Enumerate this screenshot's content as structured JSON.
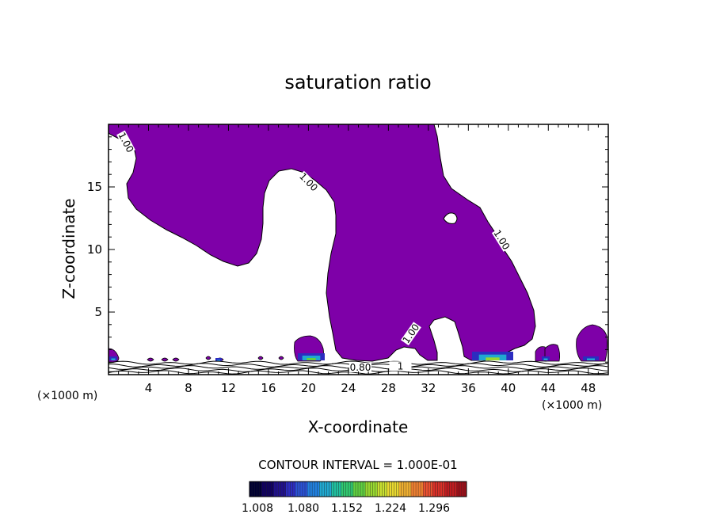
{
  "chart_data": {
    "type": "contour",
    "title": "saturation ratio",
    "xlabel": "X-coordinate",
    "ylabel": "Z-coordinate",
    "x_unit": "(×1000 m)",
    "z_unit": "(×1000 m)",
    "xlim": [
      0,
      50
    ],
    "ylim": [
      0,
      20
    ],
    "x_ticks": [
      4,
      8,
      12,
      16,
      20,
      24,
      28,
      32,
      36,
      40,
      44,
      48
    ],
    "y_ticks": [
      5,
      10,
      15
    ],
    "grid": false,
    "fill_color": "#7e00a8",
    "contour_line_color": "#000000",
    "contour_labels": [
      {
        "text": "1.00",
        "x": 1.6,
        "z": 18.5
      },
      {
        "text": "1.00",
        "x": 19.9,
        "z": 15.3
      },
      {
        "text": "1.00",
        "x": 39.2,
        "z": 10.7
      },
      {
        "text": "1.00",
        "x": 30.4,
        "z": 3.2
      },
      {
        "text": "0.80",
        "x": 25.2,
        "z": 0.45
      },
      {
        "text": "1",
        "x": 29.2,
        "z": 0.55
      }
    ],
    "contour_interval": "CONTOUR INTERVAL = 1.000E-01",
    "colorbar": {
      "ticks": [
        "1.008",
        "1.080",
        "1.152",
        "1.224",
        "1.296"
      ],
      "colors": [
        "#000033",
        "#100060",
        "#20108c",
        "#2c2cc0",
        "#2a52d6",
        "#2080e0",
        "#20a8d0",
        "#20c0a0",
        "#30c870",
        "#60d040",
        "#98d830",
        "#c8e030",
        "#e8d830",
        "#f0b030",
        "#f08030",
        "#e85030",
        "#d83028",
        "#c01c20",
        "#a0101a"
      ]
    }
  }
}
